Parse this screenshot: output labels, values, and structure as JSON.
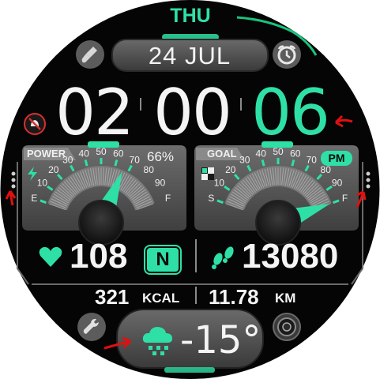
{
  "colors": {
    "accent": "#2fe0a6",
    "accent_dark": "#17b684",
    "face": "#050505",
    "panel": "#5a5a5a",
    "panel_light": "#8a8a8a",
    "text": "#f4f4f4",
    "annotation": "#e01010"
  },
  "header": {
    "day": "THU",
    "date": "24 JUL"
  },
  "time": {
    "hours": "02",
    "minutes": "00",
    "seconds": "06"
  },
  "power_gauge": {
    "title": "POWER",
    "percent_label": "66%",
    "level_fraction": 0.66,
    "tick_labels": [
      "E",
      "10",
      "20",
      "30",
      "40",
      "50",
      "60",
      "70",
      "80",
      "90",
      "F"
    ],
    "icon": "lightning-icon"
  },
  "goal_gauge": {
    "title": "GOAL",
    "badge": "PM",
    "level_fraction": 1.0,
    "tick_labels": [
      "S",
      "10",
      "20",
      "30",
      "40",
      "50",
      "60",
      "70",
      "80",
      "90",
      "F"
    ],
    "icon": "checker-flag-icon"
  },
  "stats": {
    "heart_rate": "108",
    "heart_badge": "N",
    "steps": "13080",
    "kcal_value": "321",
    "kcal_unit": "KCAL",
    "distance_value": "11.78",
    "distance_unit": "KM"
  },
  "weather": {
    "temperature": "-15°",
    "icon": "snow-cloud-icon"
  },
  "icons": {
    "top_left": "paint-brush-icon",
    "top_right": "alarm-clock-icon",
    "left_small": "no-bell-icon",
    "bottom_left": "wrench-icon",
    "bottom_right": "camera-dial-icon"
  }
}
